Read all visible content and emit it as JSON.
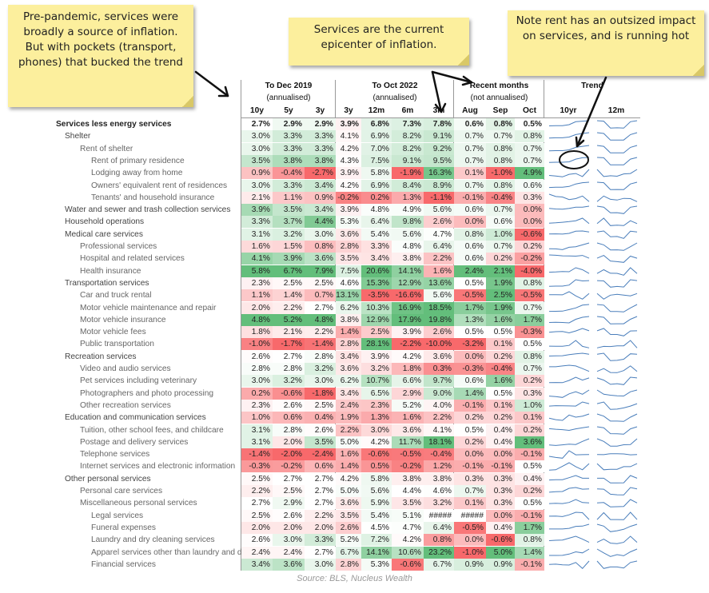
{
  "notes": {
    "left": "Pre-pandemic, services were broadly a source of inflation. But with pockets (transport, phones) that bucked the trend",
    "middle": "Services are the current epicenter of inflation.",
    "right": "Note rent has an outsized impact on services, and is running hot"
  },
  "source": "Source: BLS, Nucleus Wealth",
  "chart_data": {
    "type": "table",
    "column_groups": [
      {
        "title": "To Dec 2019",
        "subtitle": "(annualised)",
        "columns": [
          "10y",
          "5y",
          "3y"
        ]
      },
      {
        "title": "To Oct 2022",
        "subtitle": "(annualised)",
        "columns": [
          "3y",
          "12m",
          "6m",
          "3m"
        ]
      },
      {
        "title": "Recent months",
        "subtitle": "(not annualised)",
        "columns": [
          "Aug",
          "Sep",
          "Oct"
        ]
      },
      {
        "title": "Trend",
        "subtitle": "",
        "columns": [
          "10yr",
          "12m"
        ]
      }
    ],
    "rows": [
      {
        "label": "Services less energy services",
        "level": 0,
        "values": [
          "2.7%",
          "2.9%",
          "2.9%",
          "3.9%",
          "6.8%",
          "7.3%",
          "7.8%",
          "0.6%",
          "0.8%",
          "0.5%"
        ]
      },
      {
        "label": "Shelter",
        "level": 1,
        "values": [
          "3.0%",
          "3.3%",
          "3.3%",
          "4.1%",
          "6.9%",
          "8.2%",
          "9.1%",
          "0.7%",
          "0.7%",
          "0.8%"
        ]
      },
      {
        "label": "Rent of shelter",
        "level": 2,
        "values": [
          "3.0%",
          "3.3%",
          "3.3%",
          "4.2%",
          "7.0%",
          "8.2%",
          "9.2%",
          "0.7%",
          "0.8%",
          "0.7%"
        ]
      },
      {
        "label": "Rent of primary residence",
        "level": 3,
        "values": [
          "3.5%",
          "3.8%",
          "3.8%",
          "4.3%",
          "7.5%",
          "9.1%",
          "9.5%",
          "0.7%",
          "0.8%",
          "0.7%"
        ]
      },
      {
        "label": "Lodging away from home",
        "level": 3,
        "values": [
          "0.9%",
          "-0.4%",
          "-2.7%",
          "3.9%",
          "5.8%",
          "-1.9%",
          "16.3%",
          "0.1%",
          "-1.0%",
          "4.9%"
        ]
      },
      {
        "label": "Owners' equivalent rent of residences",
        "level": 3,
        "values": [
          "3.0%",
          "3.3%",
          "3.4%",
          "4.2%",
          "6.9%",
          "8.4%",
          "8.9%",
          "0.7%",
          "0.8%",
          "0.6%"
        ]
      },
      {
        "label": "Tenants' and household insurance",
        "level": 3,
        "values": [
          "2.1%",
          "1.1%",
          "0.9%",
          "-0.2%",
          "0.2%",
          "1.3%",
          "-1.1%",
          "-0.1%",
          "-0.4%",
          "0.3%"
        ]
      },
      {
        "label": "Water and sewer and trash collection services",
        "level": 1,
        "values": [
          "3.9%",
          "3.5%",
          "3.4%",
          "3.9%",
          "4.8%",
          "4.9%",
          "5.6%",
          "0.6%",
          "0.7%",
          "0.0%"
        ]
      },
      {
        "label": "Household operations",
        "level": 1,
        "values": [
          "3.3%",
          "3.7%",
          "4.4%",
          "5.3%",
          "6.4%",
          "9.8%",
          "2.6%",
          "0.0%",
          "0.6%",
          "0.0%"
        ]
      },
      {
        "label": "Medical care services",
        "level": 1,
        "values": [
          "3.1%",
          "3.2%",
          "3.0%",
          "3.6%",
          "5.4%",
          "5.6%",
          "4.7%",
          "0.8%",
          "1.0%",
          "-0.6%"
        ]
      },
      {
        "label": "Professional services",
        "level": 2,
        "values": [
          "1.6%",
          "1.5%",
          "0.8%",
          "2.8%",
          "3.3%",
          "4.8%",
          "6.4%",
          "0.6%",
          "0.7%",
          "0.2%"
        ]
      },
      {
        "label": "Hospital and related services",
        "level": 2,
        "values": [
          "4.1%",
          "3.9%",
          "3.6%",
          "3.5%",
          "3.4%",
          "3.8%",
          "2.2%",
          "0.6%",
          "0.2%",
          "-0.2%"
        ]
      },
      {
        "label": "Health insurance",
        "level": 2,
        "values": [
          "5.8%",
          "6.7%",
          "7.9%",
          "7.5%",
          "20.6%",
          "14.1%",
          "1.6%",
          "2.4%",
          "2.1%",
          "-4.0%"
        ]
      },
      {
        "label": "Transportation services",
        "level": 1,
        "values": [
          "2.3%",
          "2.5%",
          "2.5%",
          "4.6%",
          "15.3%",
          "12.9%",
          "13.6%",
          "0.5%",
          "1.9%",
          "0.8%"
        ]
      },
      {
        "label": "Car and truck rental",
        "level": 2,
        "values": [
          "1.1%",
          "1.4%",
          "0.7%",
          "13.1%",
          "-3.5%",
          "-16.6%",
          "5.6%",
          "-0.5%",
          "2.5%",
          "-0.5%"
        ]
      },
      {
        "label": "Motor vehicle maintenance and repair",
        "level": 2,
        "values": [
          "2.0%",
          "2.2%",
          "2.7%",
          "6.2%",
          "10.3%",
          "16.9%",
          "18.5%",
          "1.7%",
          "1.9%",
          "0.7%"
        ]
      },
      {
        "label": "Motor vehicle insurance",
        "level": 2,
        "values": [
          "4.8%",
          "5.2%",
          "4.8%",
          "3.8%",
          "12.9%",
          "17.9%",
          "19.8%",
          "1.3%",
          "1.6%",
          "1.7%"
        ]
      },
      {
        "label": "Motor vehicle fees",
        "level": 2,
        "values": [
          "1.8%",
          "2.1%",
          "2.2%",
          "1.4%",
          "2.5%",
          "3.9%",
          "2.6%",
          "0.5%",
          "0.5%",
          "-0.3%"
        ]
      },
      {
        "label": "Public transportation",
        "level": 2,
        "values": [
          "-1.0%",
          "-1.7%",
          "-1.4%",
          "2.8%",
          "28.1%",
          "-2.2%",
          "-10.0%",
          "-3.2%",
          "0.1%",
          "0.5%"
        ]
      },
      {
        "label": "Recreation services",
        "level": 1,
        "values": [
          "2.6%",
          "2.7%",
          "2.8%",
          "3.4%",
          "3.9%",
          "4.2%",
          "3.6%",
          "0.0%",
          "0.2%",
          "0.8%"
        ]
      },
      {
        "label": "Video and audio services",
        "level": 2,
        "values": [
          "2.8%",
          "2.8%",
          "3.2%",
          "3.6%",
          "3.2%",
          "1.8%",
          "0.3%",
          "-0.3%",
          "-0.4%",
          "0.7%"
        ]
      },
      {
        "label": "Pet services including veterinary",
        "level": 2,
        "values": [
          "3.0%",
          "3.2%",
          "3.0%",
          "6.2%",
          "10.7%",
          "6.6%",
          "9.7%",
          "0.6%",
          "1.6%",
          "0.2%"
        ]
      },
      {
        "label": "Photographers and photo processing",
        "level": 2,
        "values": [
          "0.2%",
          "-0.6%",
          "-1.8%",
          "3.4%",
          "6.5%",
          "2.9%",
          "9.0%",
          "1.4%",
          "0.5%",
          "0.3%"
        ]
      },
      {
        "label": "Other recreation services",
        "level": 2,
        "values": [
          "2.3%",
          "2.6%",
          "2.5%",
          "2.4%",
          "2.3%",
          "5.2%",
          "4.0%",
          "-0.1%",
          "0.1%",
          "1.0%"
        ]
      },
      {
        "label": "Education and communication services",
        "level": 1,
        "values": [
          "1.0%",
          "0.6%",
          "0.4%",
          "1.9%",
          "1.3%",
          "1.6%",
          "2.2%",
          "0.2%",
          "0.2%",
          "0.1%"
        ]
      },
      {
        "label": "Tuition, other school fees, and childcare",
        "level": 2,
        "values": [
          "3.1%",
          "2.8%",
          "2.6%",
          "2.2%",
          "3.0%",
          "3.6%",
          "4.1%",
          "0.5%",
          "0.4%",
          "0.2%"
        ]
      },
      {
        "label": "Postage and delivery services",
        "level": 2,
        "values": [
          "3.1%",
          "2.0%",
          "3.5%",
          "5.0%",
          "4.2%",
          "11.7%",
          "18.1%",
          "0.2%",
          "0.4%",
          "3.6%"
        ]
      },
      {
        "label": "Telephone services",
        "level": 2,
        "values": [
          "-1.4%",
          "-2.0%",
          "-2.4%",
          "1.6%",
          "-0.6%",
          "-0.5%",
          "-0.4%",
          "0.0%",
          "0.0%",
          "-0.1%"
        ]
      },
      {
        "label": "Internet services and electronic information",
        "level": 2,
        "values": [
          "-0.3%",
          "-0.2%",
          "0.6%",
          "1.4%",
          "0.5%",
          "-0.2%",
          "1.2%",
          "-0.1%",
          "-0.1%",
          "0.5%"
        ]
      },
      {
        "label": "Other personal services",
        "level": 1,
        "values": [
          "2.5%",
          "2.7%",
          "2.7%",
          "4.2%",
          "5.8%",
          "3.8%",
          "3.8%",
          "0.3%",
          "0.3%",
          "0.4%"
        ]
      },
      {
        "label": "Personal care services",
        "level": 2,
        "values": [
          "2.2%",
          "2.5%",
          "2.7%",
          "5.0%",
          "5.6%",
          "4.4%",
          "4.6%",
          "0.7%",
          "0.3%",
          "0.2%"
        ]
      },
      {
        "label": "Miscellaneous personal services",
        "level": 2,
        "values": [
          "2.7%",
          "2.9%",
          "2.7%",
          "3.6%",
          "5.9%",
          "3.5%",
          "3.2%",
          "0.1%",
          "0.3%",
          "0.5%"
        ]
      },
      {
        "label": "Legal services",
        "level": 3,
        "values": [
          "2.5%",
          "2.6%",
          "2.2%",
          "3.5%",
          "5.4%",
          "5.1%",
          "#####",
          "#####",
          "0.0%",
          "-0.1%"
        ]
      },
      {
        "label": "Funeral expenses",
        "level": 3,
        "values": [
          "2.0%",
          "2.0%",
          "2.0%",
          "2.6%",
          "4.5%",
          "4.7%",
          "6.4%",
          "-0.5%",
          "0.4%",
          "1.7%"
        ]
      },
      {
        "label": "Laundry and dry cleaning services",
        "level": 3,
        "values": [
          "2.6%",
          "3.0%",
          "3.3%",
          "5.2%",
          "7.2%",
          "4.2%",
          "0.8%",
          "0.0%",
          "-0.6%",
          "0.8%"
        ]
      },
      {
        "label": "Apparel services other than laundry and d",
        "level": 3,
        "values": [
          "2.4%",
          "2.4%",
          "2.7%",
          "6.7%",
          "14.1%",
          "10.6%",
          "23.2%",
          "-1.0%",
          "5.0%",
          "1.4%"
        ]
      },
      {
        "label": "Financial services",
        "level": 3,
        "values": [
          "3.4%",
          "3.6%",
          "3.0%",
          "2.8%",
          "5.3%",
          "-0.6%",
          "6.7%",
          "0.9%",
          "0.9%",
          "-0.1%"
        ]
      }
    ]
  }
}
